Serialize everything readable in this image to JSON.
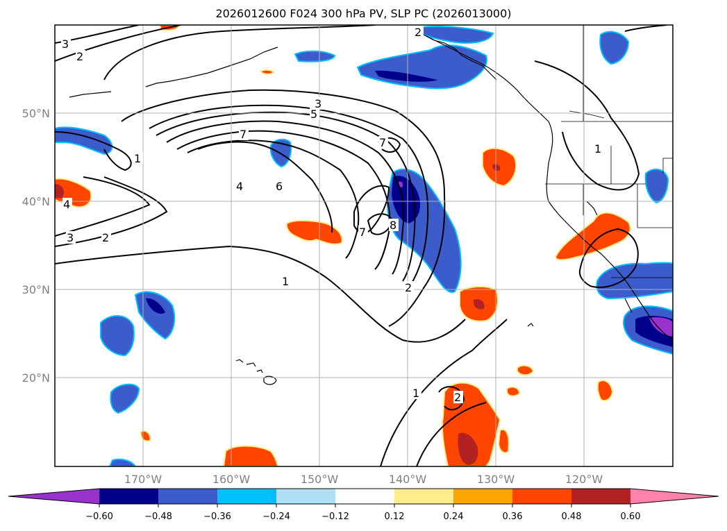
{
  "title": "2026012600 F024 300 hPa PV, SLP PC (2026013000)",
  "map": {
    "lon_ticks": [
      "170°W",
      "160°W",
      "150°W",
      "140°W",
      "130°W",
      "120°W"
    ],
    "lat_ticks": [
      "50°N",
      "40°N",
      "30°N",
      "20°N"
    ],
    "contour_labels": [
      "3",
      "2",
      "1",
      "3",
      "5",
      "7",
      "7",
      "4",
      "6",
      "1",
      "4",
      "3",
      "2",
      "1",
      "7",
      "8",
      "2",
      "2",
      "1",
      "2"
    ]
  },
  "colorbar": {
    "ticks": [
      "−0.60",
      "−0.48",
      "−0.36",
      "−0.24",
      "−0.12",
      "0.12",
      "0.24",
      "0.36",
      "0.48",
      "0.60"
    ],
    "colors": [
      "#9932cc",
      "#00008b",
      "#3d5ccc",
      "#00bfff",
      "#b0e0f5",
      "#ffffff",
      "#ffec8b",
      "#ffa500",
      "#ff4500",
      "#b22222",
      "#ff82ab"
    ]
  }
}
